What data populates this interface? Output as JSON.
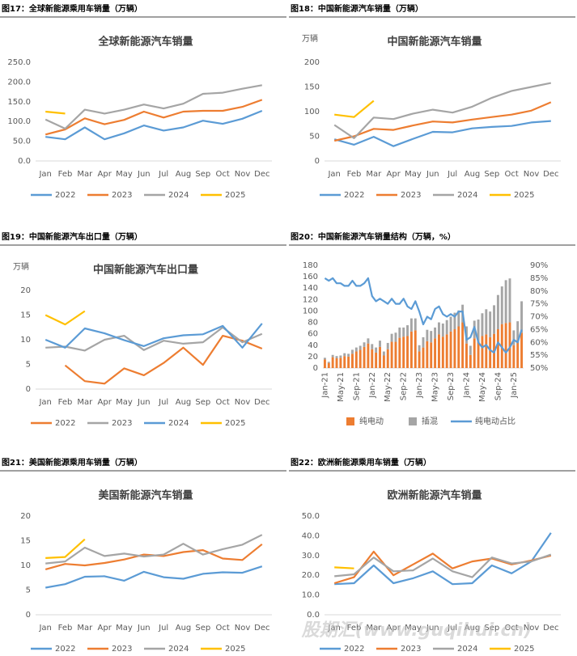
{
  "watermark": "股期汇(www.guqihui.cn)",
  "chart_data": [
    {
      "type": "line",
      "header": "图17：全球新能源乘用车销量（万辆）",
      "title": "全球新能源汽车销量",
      "categories": [
        "Jan",
        "Feb",
        "Mar",
        "Apr",
        "May",
        "Jun",
        "Jul",
        "Aug",
        "Sep",
        "Oct",
        "Nov",
        "Dec"
      ],
      "ylim": [
        0,
        250
      ],
      "yticks": [
        {
          "value": 0,
          "label": "0.0"
        },
        {
          "value": 50,
          "label": "50.0"
        },
        {
          "value": 100,
          "label": "100.0"
        },
        {
          "value": 150,
          "label": "150.0"
        },
        {
          "value": 200,
          "label": "200.0"
        },
        {
          "value": 250,
          "label": "250.0"
        }
      ],
      "series": [
        {
          "name": "2022",
          "color": "#5b9bd5",
          "values": [
            61,
            55,
            85,
            55,
            70,
            90,
            77,
            85,
            102,
            94,
            107,
            127
          ]
        },
        {
          "name": "2023",
          "color": "#ed7d31",
          "values": [
            67,
            80,
            108,
            93,
            104,
            125,
            110,
            125,
            127,
            127,
            137,
            155
          ]
        },
        {
          "name": "2024",
          "color": "#a5a5a5",
          "values": [
            105,
            82,
            130,
            120,
            130,
            143,
            133,
            145,
            170,
            173,
            183,
            192
          ]
        },
        {
          "name": "2025",
          "color": "#ffc000",
          "values": [
            125,
            120,
            null,
            null,
            null,
            null,
            null,
            null,
            null,
            null,
            null,
            null
          ]
        }
      ]
    },
    {
      "type": "line",
      "header": "图18：中国新能源汽车销量（万辆）",
      "title": "中国新能源汽车销量",
      "y_label": "万辆",
      "categories": [
        "Jan",
        "Feb",
        "Mar",
        "Apr",
        "May",
        "Jun",
        "Jul",
        "Aug",
        "Sep",
        "Oct",
        "Nov",
        "Dec"
      ],
      "ylim": [
        0,
        200
      ],
      "yticks": [
        0,
        50,
        100,
        150,
        200
      ],
      "series": [
        {
          "name": "2022",
          "color": "#5b9bd5",
          "values": [
            44,
            33,
            49,
            30,
            45,
            59,
            58,
            66,
            69,
            71,
            78,
            81
          ]
        },
        {
          "name": "2023",
          "color": "#ed7d31",
          "values": [
            41,
            50,
            65,
            63,
            72,
            80,
            78,
            84,
            89,
            94,
            102,
            119
          ]
        },
        {
          "name": "2024",
          "color": "#a5a5a5",
          "values": [
            73,
            46,
            88,
            85,
            96,
            104,
            98,
            110,
            128,
            142,
            150,
            158
          ]
        },
        {
          "name": "2025",
          "color": "#ffc000",
          "values": [
            94,
            89,
            122,
            null,
            null,
            null,
            null,
            null,
            null,
            null,
            null,
            null
          ]
        }
      ]
    },
    {
      "type": "line",
      "header": "图19：中国新能源汽车出口量（万辆）",
      "title": "中国新能源汽车出口量",
      "y_label": "万辆",
      "categories": [
        "Jan",
        "Feb",
        "Mar",
        "Apr",
        "May",
        "Jun",
        "Jul",
        "Aug",
        "Sep",
        "Oct",
        "Nov",
        "Dec"
      ],
      "ylim": [
        0,
        20
      ],
      "yticks": [
        0,
        5,
        10,
        15,
        20
      ],
      "series": [
        {
          "name": "2022",
          "color": "#ed7d31",
          "values": [
            null,
            4.8,
            1.6,
            1.1,
            4.2,
            2.8,
            5.3,
            8.4,
            4.9,
            10.8,
            9.8,
            8.2
          ]
        },
        {
          "name": "2023",
          "color": "#a5a5a5",
          "values": [
            8.4,
            8.6,
            7.8,
            10,
            10.8,
            7.9,
            9.8,
            9.2,
            9.5,
            12.5,
            9.5,
            11.2
          ]
        },
        {
          "name": "2024",
          "color": "#5b9bd5",
          "values": [
            10,
            8.4,
            12.3,
            11.3,
            9.9,
            8.7,
            10.3,
            10.9,
            11.1,
            12.8,
            8.4,
            13.3
          ]
        },
        {
          "name": "2025",
          "color": "#ffc000",
          "values": [
            15,
            13.1,
            15.8,
            null,
            null,
            null,
            null,
            null,
            null,
            null,
            null,
            null
          ]
        }
      ]
    },
    {
      "type": "bar",
      "stacked": true,
      "header": "图20：中国新能源汽车销量结构（万辆，%）",
      "categories": [
        "Jan-21",
        null,
        null,
        null,
        "May-21",
        null,
        null,
        null,
        "Sep-21",
        null,
        null,
        null,
        "Jan-22",
        null,
        null,
        null,
        "May-22",
        null,
        null,
        null,
        "Sep-22",
        null,
        null,
        null,
        "Jan-23",
        null,
        null,
        null,
        "May-23",
        null,
        null,
        null,
        "Sep-23",
        null,
        null,
        null,
        "Jan-24",
        null,
        null,
        null,
        "May-24",
        null,
        null,
        null,
        "Sep-24",
        null,
        null,
        null,
        "Jan-25",
        null,
        null
      ],
      "ylim": [
        0,
        180
      ],
      "yticks": [
        0,
        20,
        40,
        60,
        80,
        100,
        120,
        140,
        160,
        180
      ],
      "y2lim": [
        50,
        90
      ],
      "y2ticks": [
        {
          "value": 50,
          "label": "50%"
        },
        {
          "value": 55,
          "label": "55%"
        },
        {
          "value": 60,
          "label": "60%"
        },
        {
          "value": 65,
          "label": "65%"
        },
        {
          "value": 70,
          "label": "70%"
        },
        {
          "value": 75,
          "label": "75%"
        },
        {
          "value": 80,
          "label": "80%"
        },
        {
          "value": 85,
          "label": "85%"
        },
        {
          "value": 90,
          "label": "90%"
        }
      ],
      "series": [
        {
          "name": "纯电动",
          "color": "#ed7d31",
          "values": [
            15,
            9,
            19,
            17,
            18,
            21,
            20,
            25,
            29,
            32,
            37,
            43,
            33,
            27,
            37,
            22,
            33,
            46,
            46,
            53,
            55,
            56,
            64,
            66,
            29,
            36,
            47,
            45,
            52,
            59,
            55,
            59,
            64,
            68,
            73,
            80,
            43,
            23,
            52,
            47,
            56,
            59,
            54,
            60,
            68,
            77,
            79,
            80,
            40,
            49,
            62
          ]
        },
        {
          "name": "插混",
          "color": "#a5a5a5",
          "values": [
            3,
            2,
            4,
            4,
            4,
            5,
            5,
            7,
            7,
            7,
            8,
            9,
            9,
            9,
            11,
            7,
            11,
            14,
            16,
            18,
            16,
            19,
            23,
            21,
            11,
            18,
            20,
            20,
            19,
            21,
            23,
            25,
            26,
            29,
            28,
            31,
            30,
            16,
            31,
            38,
            40,
            44,
            45,
            50,
            60,
            66,
            75,
            77,
            26,
            33,
            55
          ]
        },
        {
          "name": "纯电动占比",
          "color": "#5b9bd5",
          "type": "line",
          "axis": "y2",
          "values": [
            85,
            84,
            85,
            83,
            83,
            82,
            82,
            84,
            82,
            82,
            83,
            85,
            78,
            76,
            77,
            76,
            75,
            77,
            75,
            75,
            77,
            74,
            73,
            76,
            72,
            67,
            70,
            69,
            73,
            74,
            71,
            70,
            71,
            70,
            72,
            72,
            61,
            62,
            66,
            60,
            58,
            59,
            57,
            56,
            60,
            58,
            56,
            58,
            61,
            60,
            65
          ]
        }
      ]
    },
    {
      "type": "line",
      "header": "图21：美国新能源乘用车销量（万辆）",
      "title": "美国新能源汽车销量",
      "categories": [
        "Jan",
        "Feb",
        "Mar",
        "Apr",
        "May",
        "Jun",
        "Jul",
        "Aug",
        "Sep",
        "Oct",
        "Nov",
        "Dec"
      ],
      "ylim": [
        0,
        20
      ],
      "yticks": [
        0,
        5,
        10,
        15,
        20
      ],
      "series": [
        {
          "name": "2022",
          "color": "#5b9bd5",
          "values": [
            5.5,
            6.2,
            7.7,
            7.8,
            6.9,
            8.7,
            7.6,
            7.3,
            8.3,
            8.6,
            8.5,
            9.8
          ]
        },
        {
          "name": "2023",
          "color": "#ed7d31",
          "values": [
            9.2,
            10.3,
            10,
            10.5,
            11.2,
            12.2,
            11.9,
            12.7,
            13.1,
            11.4,
            11.1,
            14.3
          ]
        },
        {
          "name": "2024",
          "color": "#a5a5a5",
          "values": [
            10.4,
            10.8,
            13.6,
            11.9,
            12.4,
            11.8,
            12.2,
            14.4,
            12.2,
            13.3,
            14.2,
            16.2
          ]
        },
        {
          "name": "2025",
          "color": "#ffc000",
          "values": [
            11.5,
            11.7,
            15.3,
            null,
            null,
            null,
            null,
            null,
            null,
            null,
            null,
            null
          ]
        }
      ]
    },
    {
      "type": "line",
      "header": "图22：欧洲新能源乘用车销量（万辆）",
      "title": "欧洲新能源汽车销量",
      "categories": [
        "Jan",
        "Feb",
        "Mar",
        "Apr",
        "May",
        "Jun",
        "Jul",
        "Aug",
        "Sep",
        "Oct",
        "Nov",
        "Dec"
      ],
      "ylim": [
        0,
        50
      ],
      "yticks": [
        {
          "value": 0,
          "label": "0.0"
        },
        {
          "value": 10,
          "label": "10.0"
        },
        {
          "value": 20,
          "label": "20.0"
        },
        {
          "value": 30,
          "label": "30.0"
        },
        {
          "value": 40,
          "label": "40.0"
        },
        {
          "value": 50,
          "label": "50.0"
        }
      ],
      "series": [
        {
          "name": "2022",
          "color": "#5b9bd5",
          "values": [
            15.5,
            16,
            25,
            16,
            18.5,
            22,
            15.5,
            16,
            25,
            21,
            27,
            41.5
          ]
        },
        {
          "name": "2023",
          "color": "#ed7d31",
          "values": [
            16,
            19,
            32,
            20,
            25.5,
            31,
            23.5,
            27,
            28.5,
            25.5,
            27.5,
            30
          ]
        },
        {
          "name": "2024",
          "color": "#a5a5a5",
          "values": [
            19.5,
            20.5,
            29,
            22,
            22.5,
            28.5,
            22,
            19,
            29,
            26,
            27,
            30.5
          ]
        },
        {
          "name": "2025",
          "color": "#ffc000",
          "values": [
            24,
            23.5,
            null,
            null,
            null,
            null,
            null,
            null,
            null,
            null,
            null,
            null
          ]
        }
      ]
    }
  ]
}
